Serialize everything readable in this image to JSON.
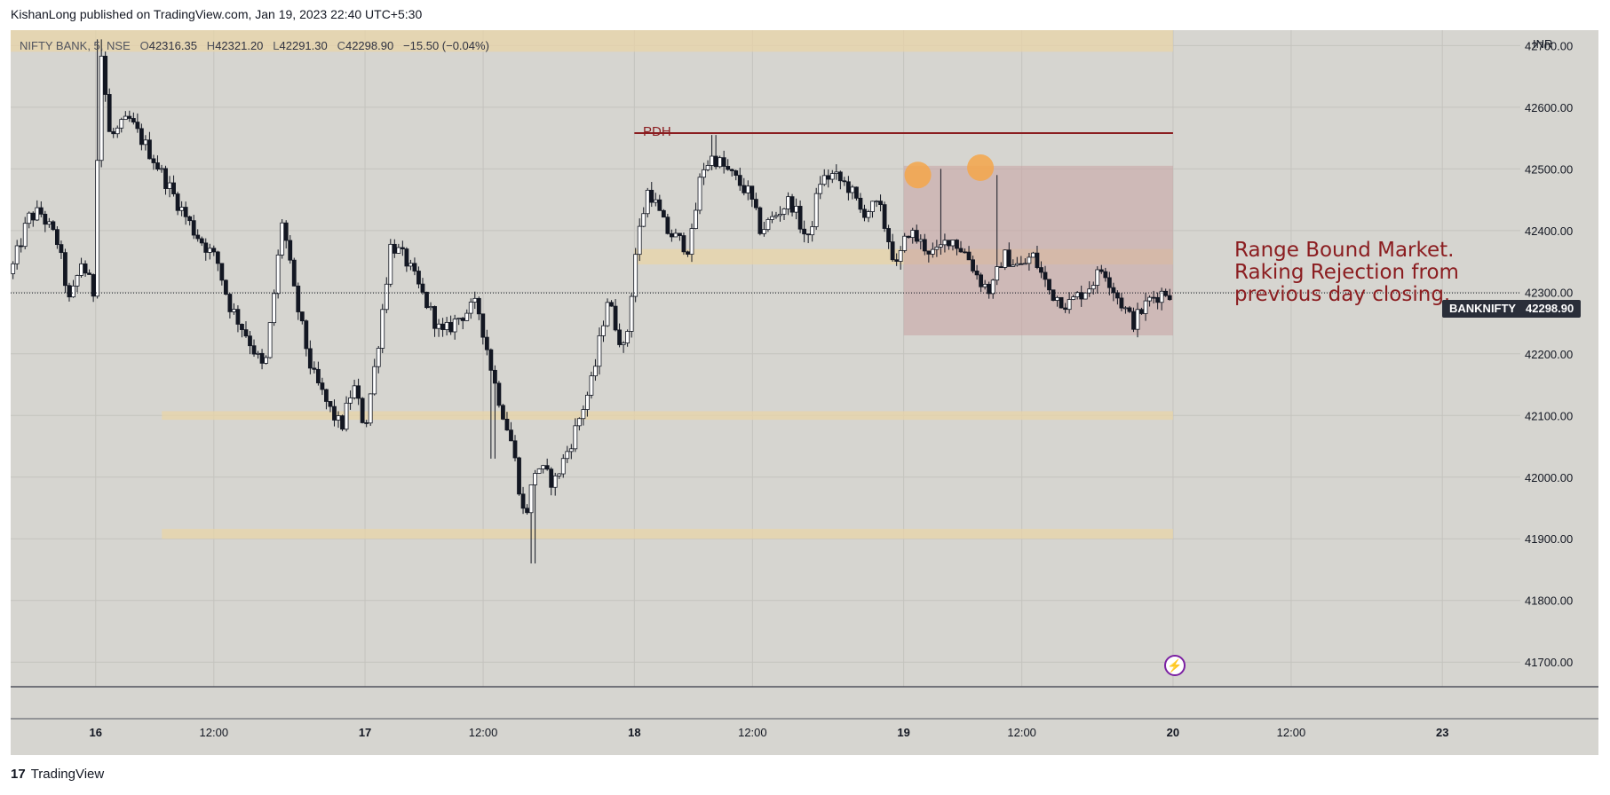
{
  "header": {
    "publisher_line": "KishanLong published on TradingView.com, Jan 19, 2023 22:40 UTC+5:30"
  },
  "symbol_info": {
    "name": "NIFTY BANK, 5, NSE",
    "open_label": "O",
    "open": "42316.35",
    "high_label": "H",
    "high": "42321.20",
    "low_label": "L",
    "low": "42291.30",
    "close_label": "C",
    "close": "42298.90",
    "change": "−15.50 (−0.04%)"
  },
  "price_axis": {
    "currency": "INR"
  },
  "last_price": {
    "symbol": "BANKNIFTY",
    "value": "42298.90"
  },
  "annotations": {
    "pdh": "PDH",
    "note_lines": [
      "Range Bound Market.",
      "Raking Rejection from",
      "previous day closing."
    ]
  },
  "footer": {
    "brand": "TradingView"
  },
  "colors": {
    "background": "#d6d5d0",
    "candle": "#131722",
    "zone": "#e8d4a8",
    "range_box": "#c9a3a3",
    "pdh_line": "#8b1d20",
    "marker": "#f5a64a"
  },
  "chart_data": {
    "type": "candlestick",
    "ylim": [
      41660,
      42725
    ],
    "yticks": [
      41700,
      41800,
      41900,
      42000,
      42100,
      42200,
      42300,
      42400,
      42500,
      42600,
      42700
    ],
    "ytick_labels": [
      "41700.00",
      "41800.00",
      "41900.00",
      "42000.00",
      "42100.00",
      "42200.00",
      "42300.00",
      "42400.00",
      "42500.00",
      "42600.00",
      "42700.00"
    ],
    "xticks": [
      {
        "label": "16",
        "t": 7.2
      },
      {
        "label": "12:00",
        "t": 17.2
      },
      {
        "label": "17",
        "t": 30.0
      },
      {
        "label": "12:00",
        "t": 40.0
      },
      {
        "label": "18",
        "t": 52.8
      },
      {
        "label": "12:00",
        "t": 62.8
      },
      {
        "label": "19",
        "t": 75.6
      },
      {
        "label": "12:00",
        "t": 85.6
      },
      {
        "label": "20",
        "t": 98.4
      },
      {
        "label": "12:00",
        "t": 108.4
      },
      {
        "label": "23",
        "t": 121.2
      }
    ],
    "x_range": [
      0,
      127.8
    ],
    "price_path": [
      [
        0,
        42330
      ],
      [
        1.5,
        42420
      ],
      [
        2.5,
        42430
      ],
      [
        4,
        42380
      ],
      [
        5,
        42280
      ],
      [
        6,
        42350
      ],
      [
        7,
        42300
      ],
      [
        7.6,
        42700
      ],
      [
        8.4,
        42550
      ],
      [
        10,
        42580
      ],
      [
        12,
        42520
      ],
      [
        14,
        42450
      ],
      [
        15.5,
        42400
      ],
      [
        17.5,
        42350
      ],
      [
        18.5,
        42280
      ],
      [
        20,
        42230
      ],
      [
        21.5,
        42170
      ],
      [
        22.5,
        42330
      ],
      [
        23,
        42420
      ],
      [
        24,
        42300
      ],
      [
        25.5,
        42170
      ],
      [
        27,
        42110
      ],
      [
        28,
        42080
      ],
      [
        29,
        42150
      ],
      [
        30,
        42080
      ],
      [
        31,
        42200
      ],
      [
        32.2,
        42380
      ],
      [
        33.5,
        42350
      ],
      [
        35,
        42290
      ],
      [
        36.5,
        42230
      ],
      [
        38,
        42260
      ],
      [
        39.5,
        42280
      ],
      [
        41,
        42150
      ],
      [
        42.5,
        42050
      ],
      [
        43.5,
        41930
      ],
      [
        44.5,
        42020
      ],
      [
        46,
        41990
      ],
      [
        47.5,
        42060
      ],
      [
        49.3,
        42160
      ],
      [
        50.5,
        42290
      ],
      [
        52,
        42200
      ],
      [
        53,
        42380
      ],
      [
        54,
        42470
      ],
      [
        55.5,
        42400
      ],
      [
        57.5,
        42370
      ],
      [
        58.5,
        42500
      ],
      [
        59.5,
        42520
      ],
      [
        61,
        42490
      ],
      [
        62.5,
        42460
      ],
      [
        63.5,
        42400
      ],
      [
        65,
        42430
      ],
      [
        66,
        42450
      ],
      [
        67.5,
        42380
      ],
      [
        68.5,
        42480
      ],
      [
        69.5,
        42490
      ],
      [
        71,
        42470
      ],
      [
        72,
        42430
      ],
      [
        73.5,
        42440
      ],
      [
        75,
        42340
      ],
      [
        76,
        42400
      ],
      [
        77,
        42380
      ],
      [
        78.3,
        42360
      ],
      [
        79.5,
        42390
      ],
      [
        81,
        42360
      ],
      [
        82,
        42320
      ],
      [
        83,
        42300
      ],
      [
        84,
        42360
      ],
      [
        85.5,
        42340
      ],
      [
        86.5,
        42360
      ],
      [
        88,
        42300
      ],
      [
        89.5,
        42280
      ],
      [
        91.3,
        42310
      ],
      [
        92.5,
        42340
      ],
      [
        93.5,
        42300
      ],
      [
        95,
        42250
      ],
      [
        96.5,
        42290
      ],
      [
        97.5,
        42300
      ],
      [
        98.4,
        42300
      ]
    ],
    "spikes": [
      {
        "t": 7.5,
        "high": 42710
      },
      {
        "t": 40.8,
        "low": 42030
      },
      {
        "t": 44.2,
        "low": 41860
      },
      {
        "t": 59.5,
        "high": 42555
      },
      {
        "t": 78.8,
        "high": 42500
      },
      {
        "t": 83.5,
        "high": 42490
      }
    ],
    "zones": [
      {
        "t0": 0,
        "t1": 98.4,
        "y0": 42690,
        "y1": 42725
      },
      {
        "t0": 12.8,
        "t1": 98.4,
        "y0": 42093,
        "y1": 42107
      },
      {
        "t0": 12.8,
        "t1": 98.4,
        "y0": 41900,
        "y1": 41916
      },
      {
        "t0": 52.8,
        "t1": 98.4,
        "y0": 42345,
        "y1": 42370
      }
    ],
    "range_box": {
      "t0": 75.6,
      "t1": 98.4,
      "y0": 42230,
      "y1": 42505
    },
    "pdh": {
      "t0": 52.8,
      "t1": 98.4,
      "y": 42558
    },
    "last_price_line": 42298.9,
    "markers": [
      {
        "t": 76.8,
        "y": 42490
      },
      {
        "t": 82.1,
        "y": 42502
      }
    ]
  }
}
